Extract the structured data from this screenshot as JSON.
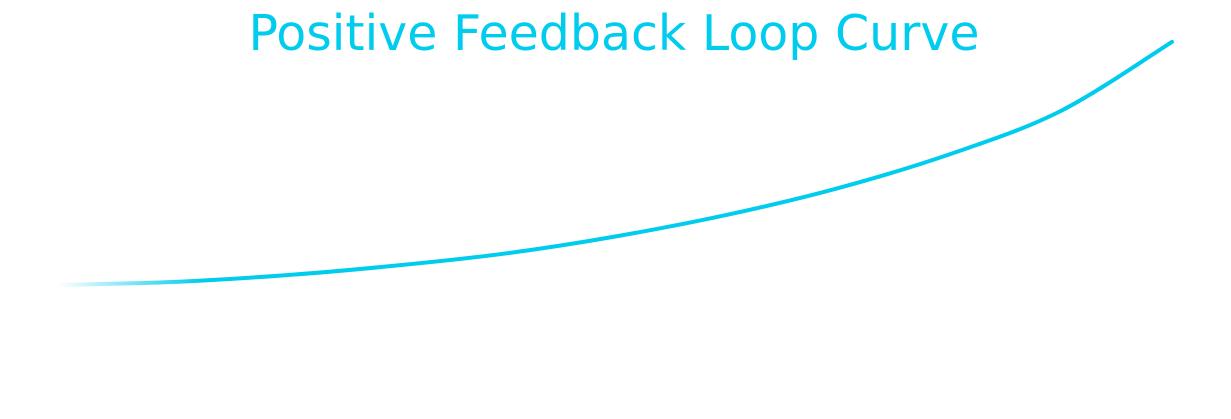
{
  "colors": {
    "accent": "#00ccee",
    "background": "#ffffff"
  },
  "chart_data": {
    "type": "line",
    "title": "Positive Feedback Loop Curve",
    "xlabel": "",
    "ylabel": "",
    "grid": false,
    "legend": "none",
    "axes_visible": false,
    "xlim": [
      0,
      10
    ],
    "ylim": [
      0,
      10
    ],
    "series": [
      {
        "x": [
          0,
          1,
          2,
          3,
          4,
          5,
          6,
          7,
          8,
          9,
          10
        ],
        "y": [
          0.0,
          0.11,
          0.36,
          0.73,
          1.2,
          1.86,
          2.69,
          3.72,
          5.02,
          6.69,
          9.35
        ]
      }
    ]
  }
}
